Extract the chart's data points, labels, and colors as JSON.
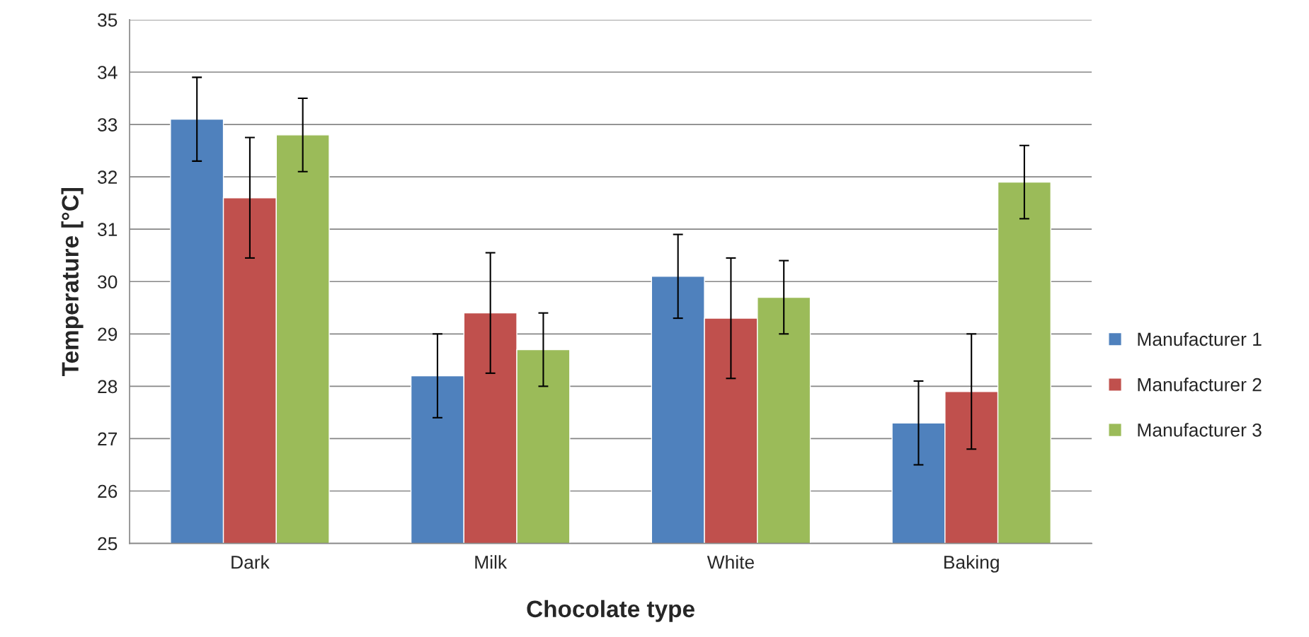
{
  "chart_data": {
    "type": "bar",
    "xlabel": "Chocolate type",
    "ylabel": "Temperature [°C]",
    "categories": [
      "Dark",
      "Milk",
      "White",
      "Baking"
    ],
    "series": [
      {
        "name": "Manufacturer 1",
        "color": "#4f81bd",
        "values": [
          33.1,
          28.2,
          30.1,
          27.3
        ],
        "errors": [
          0.8,
          0.8,
          0.8,
          0.8
        ]
      },
      {
        "name": "Manufacturer 2",
        "color": "#c0504d",
        "values": [
          31.6,
          29.4,
          29.3,
          27.9
        ],
        "errors": [
          1.15,
          1.15,
          1.15,
          1.1
        ]
      },
      {
        "name": "Manufacturer 3",
        "color": "#9bbb59",
        "values": [
          32.8,
          28.7,
          29.7,
          31.9
        ],
        "errors": [
          0.7,
          0.7,
          0.7,
          0.7
        ]
      }
    ],
    "ylim": [
      25,
      35
    ],
    "yticks": [
      25,
      26,
      27,
      28,
      29,
      30,
      31,
      32,
      33,
      34,
      35
    ],
    "grid": "y",
    "legend": "right"
  }
}
